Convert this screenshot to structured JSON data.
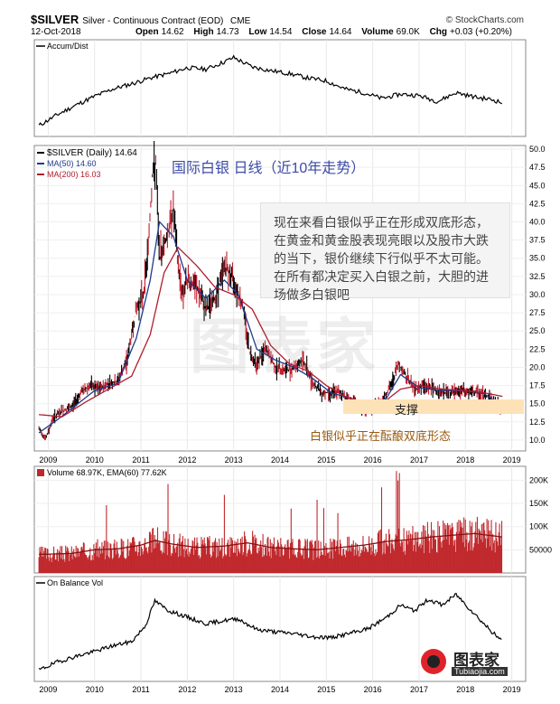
{
  "header": {
    "symbol": "$SILVER",
    "description": "Silver - Continuous Contract (EOD)",
    "exchange": "CME",
    "date": "12-Oct-2018",
    "open_label": "Open",
    "open": "14.62",
    "high_label": "High",
    "high": "14.73",
    "low_label": "Low",
    "low": "14.54",
    "close_label": "Close",
    "close": "14.64",
    "volume_label": "Volume",
    "volume": "69.0K",
    "chg_label": "Chg",
    "chg": "+0.03 (+0.20%)",
    "logo_text": "© StockCharts.com"
  },
  "annotations": {
    "chart_title_cn": "国际白银 日线（近10年走势）",
    "commentary": "现在来看白银似乎正在形成双底形态，在黄金和黄金股表现亮眼以及股市大跌的当下，银价继续下行似乎不太可能。在所有都决定买入白银之前，大胆的进场做多白银吧",
    "support": "支撑",
    "bottom_note": "白银似乎正在酝酿双底形态",
    "watermark": "图表家",
    "brand_name": "图表家",
    "brand_url": "Tubiaojia.com"
  },
  "colors": {
    "price": "#000000",
    "ma50": "#1f3a8a",
    "ma200": "#b01c2e",
    "volume": "#c0282c",
    "volume_ema": "#8a1010",
    "support_band": "#fde2b8"
  },
  "chart_data": [
    {
      "type": "line",
      "panel": "accum_dist",
      "title": "Accum/Dist",
      "x_years": [
        2009,
        2010,
        2011,
        2012,
        2013,
        2014,
        2015,
        2016,
        2017,
        2018,
        2019
      ],
      "x": [
        2008.8,
        2009.2,
        2009.6,
        2010.0,
        2010.4,
        2010.8,
        2011.2,
        2011.6,
        2012.0,
        2012.4,
        2012.8,
        2013.0,
        2013.4,
        2013.8,
        2014.2,
        2014.6,
        2015.0,
        2015.4,
        2015.8,
        2016.2,
        2016.6,
        2017.0,
        2017.4,
        2017.8,
        2018.2,
        2018.6,
        2018.8
      ],
      "values": [
        0.05,
        0.2,
        0.33,
        0.45,
        0.55,
        0.62,
        0.7,
        0.76,
        0.84,
        0.82,
        0.92,
        0.98,
        0.85,
        0.8,
        0.76,
        0.7,
        0.66,
        0.55,
        0.5,
        0.42,
        0.48,
        0.46,
        0.38,
        0.5,
        0.44,
        0.4,
        0.36
      ]
    },
    {
      "type": "line",
      "panel": "price",
      "title": "$SILVER (Daily) 14.64",
      "legend": [
        {
          "name": "$SILVER (Daily) 14.64",
          "color": "#000000"
        },
        {
          "name": "MA(50) 14.60",
          "color": "#1f3a8a"
        },
        {
          "name": "MA(200) 16.03",
          "color": "#b01c2e"
        }
      ],
      "ylim": [
        8.5,
        50.5
      ],
      "y_ticks": [
        10.0,
        12.5,
        15.0,
        17.5,
        20.0,
        22.5,
        25.0,
        27.5,
        30.0,
        32.5,
        35.0,
        37.5,
        40.0,
        42.5,
        45.0,
        47.5,
        50.0
      ],
      "x_years": [
        2009,
        2010,
        2011,
        2012,
        2013,
        2014,
        2015,
        2016,
        2017,
        2018,
        2019
      ],
      "series": [
        {
          "name": "$SILVER (Daily) 14.64",
          "x": [
            2008.8,
            2008.95,
            2009.1,
            2009.3,
            2009.5,
            2009.7,
            2009.9,
            2010.1,
            2010.3,
            2010.5,
            2010.7,
            2010.9,
            2011.05,
            2011.15,
            2011.25,
            2011.32,
            2011.4,
            2011.5,
            2011.6,
            2011.7,
            2011.8,
            2011.9,
            2012.0,
            2012.2,
            2012.4,
            2012.6,
            2012.8,
            2013.0,
            2013.2,
            2013.35,
            2013.5,
            2013.7,
            2013.9,
            2014.1,
            2014.3,
            2014.5,
            2014.7,
            2014.9,
            2015.1,
            2015.3,
            2015.5,
            2015.7,
            2015.9,
            2016.0,
            2016.2,
            2016.4,
            2016.55,
            2016.7,
            2016.9,
            2017.1,
            2017.3,
            2017.5,
            2017.7,
            2017.9,
            2018.1,
            2018.3,
            2018.5,
            2018.7,
            2018.8
          ],
          "values": [
            11.5,
            10.2,
            13.0,
            14.0,
            14.5,
            16.5,
            17.5,
            17.0,
            17.8,
            18.0,
            21.0,
            28.0,
            30.0,
            36.0,
            46.5,
            48.0,
            35.0,
            37.0,
            39.0,
            42.0,
            34.0,
            30.0,
            32.0,
            31.0,
            28.0,
            29.5,
            34.0,
            32.0,
            28.5,
            22.0,
            20.5,
            22.5,
            20.0,
            19.5,
            20.0,
            21.0,
            18.0,
            16.5,
            16.5,
            16.5,
            15.5,
            14.5,
            14.0,
            14.2,
            15.5,
            17.5,
            20.5,
            19.0,
            17.0,
            17.5,
            17.0,
            16.5,
            16.5,
            16.8,
            16.5,
            16.5,
            16.0,
            14.7,
            14.6
          ]
        },
        {
          "name": "MA(50) 14.60",
          "x": [
            2008.8,
            2009.2,
            2009.6,
            2010.0,
            2010.5,
            2010.9,
            2011.2,
            2011.4,
            2011.7,
            2012.0,
            2012.4,
            2012.8,
            2013.1,
            2013.5,
            2013.9,
            2014.3,
            2014.7,
            2015.1,
            2015.5,
            2015.9,
            2016.3,
            2016.6,
            2017.0,
            2017.5,
            2018.0,
            2018.4,
            2018.8
          ],
          "values": [
            11.0,
            12.8,
            14.8,
            16.8,
            17.8,
            24.0,
            32.0,
            40.0,
            38.0,
            32.0,
            29.5,
            32.0,
            30.0,
            22.5,
            21.0,
            20.0,
            18.5,
            16.5,
            15.8,
            14.5,
            15.8,
            19.0,
            17.2,
            16.8,
            16.8,
            16.4,
            14.6
          ]
        },
        {
          "name": "MA(200) 16.03",
          "x": [
            2008.8,
            2009.3,
            2009.8,
            2010.3,
            2010.8,
            2011.2,
            2011.5,
            2011.8,
            2012.2,
            2012.6,
            2013.0,
            2013.4,
            2013.8,
            2014.2,
            2014.6,
            2015.0,
            2015.4,
            2015.8,
            2016.2,
            2016.6,
            2017.0,
            2017.5,
            2018.0,
            2018.4,
            2018.8
          ],
          "values": [
            13.5,
            13.2,
            15.2,
            17.0,
            18.8,
            24.5,
            33.0,
            36.5,
            34.0,
            31.0,
            30.0,
            28.0,
            23.0,
            20.5,
            19.5,
            17.5,
            16.0,
            15.2,
            15.0,
            17.0,
            17.5,
            17.0,
            16.8,
            16.5,
            16.0
          ]
        }
      ]
    },
    {
      "type": "bar",
      "panel": "volume",
      "title": "Volume 68.97K, EMA(60) 77.62K",
      "ylim": [
        0,
        230000
      ],
      "y_tick_labels": [
        "50000",
        "100K",
        "150K",
        "200K"
      ],
      "y_tick_values": [
        50000,
        100000,
        150000,
        200000
      ],
      "x_years": [
        2009,
        2010,
        2011,
        2012,
        2013,
        2014,
        2015,
        2016,
        2017,
        2018,
        2019
      ],
      "ema_x": [
        2008.8,
        2009.5,
        2010.0,
        2010.5,
        2011.0,
        2011.3,
        2011.7,
        2012.2,
        2012.8,
        2013.3,
        2013.8,
        2014.3,
        2014.8,
        2015.3,
        2015.8,
        2016.3,
        2016.8,
        2017.3,
        2017.8,
        2018.2,
        2018.6,
        2018.8
      ],
      "ema_values": [
        40000,
        42000,
        50000,
        52000,
        60000,
        70000,
        62000,
        55000,
        58000,
        65000,
        55000,
        52000,
        50000,
        55000,
        60000,
        68000,
        72000,
        78000,
        82000,
        85000,
        80000,
        77620
      ]
    },
    {
      "type": "line",
      "panel": "obv",
      "title": "On Balance Vol",
      "x_years": [
        2009,
        2010,
        2011,
        2012,
        2013,
        2014,
        2015,
        2016,
        2017,
        2018,
        2019
      ],
      "x": [
        2008.8,
        2009.2,
        2009.6,
        2010.0,
        2010.4,
        2010.8,
        2011.1,
        2011.3,
        2011.6,
        2012.0,
        2012.4,
        2012.8,
        2013.1,
        2013.5,
        2013.9,
        2014.3,
        2014.7,
        2015.1,
        2015.5,
        2015.9,
        2016.3,
        2016.6,
        2016.9,
        2017.2,
        2017.5,
        2017.8,
        2018.1,
        2018.4,
        2018.7,
        2018.8
      ],
      "values": [
        0.05,
        0.15,
        0.22,
        0.28,
        0.35,
        0.4,
        0.6,
        0.9,
        0.78,
        0.7,
        0.62,
        0.66,
        0.68,
        0.55,
        0.52,
        0.5,
        0.46,
        0.45,
        0.5,
        0.56,
        0.7,
        0.85,
        0.78,
        0.92,
        0.85,
        0.98,
        0.8,
        0.62,
        0.45,
        0.4
      ]
    }
  ]
}
